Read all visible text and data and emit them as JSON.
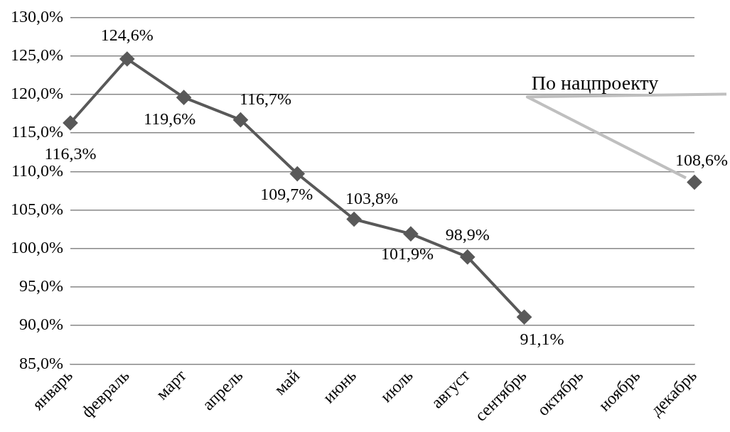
{
  "chart_data": {
    "type": "line",
    "categories": [
      "январь",
      "февраль",
      "март",
      "апрель",
      "май",
      "июнь",
      "июль",
      "август",
      "сентябрь",
      "октябрь",
      "ноябрь",
      "декабрь"
    ],
    "series": [
      {
        "color": "#595959",
        "values": [
          116.3,
          124.6,
          119.6,
          116.7,
          109.7,
          103.8,
          101.9,
          98.9,
          91.1,
          null,
          null,
          108.6
        ],
        "value_labels": [
          "116,3%",
          "124,6%",
          "119,6%",
          "116,7%",
          "109,7%",
          "103,8%",
          "101,9%",
          "98,9%",
          "91,1%",
          null,
          null,
          "108,6%"
        ]
      }
    ],
    "ylim": [
      85,
      130
    ],
    "yticks": [
      {
        "value": 85,
        "label": "85,0%"
      },
      {
        "value": 90,
        "label": "90,0%"
      },
      {
        "value": 95,
        "label": "95,0%"
      },
      {
        "value": 100,
        "label": "100,0%"
      },
      {
        "value": 105,
        "label": "105,0%"
      },
      {
        "value": 110,
        "label": "110,0%"
      },
      {
        "value": 115,
        "label": "115,0%"
      },
      {
        "value": 120,
        "label": "120,0%"
      },
      {
        "value": 125,
        "label": "125,0%"
      },
      {
        "value": 130,
        "label": "130,0%"
      }
    ],
    "annotations": [
      "По нацпроекту"
    ],
    "grid": "y",
    "marker": "diamond",
    "line_style": "solid",
    "legend": false
  }
}
